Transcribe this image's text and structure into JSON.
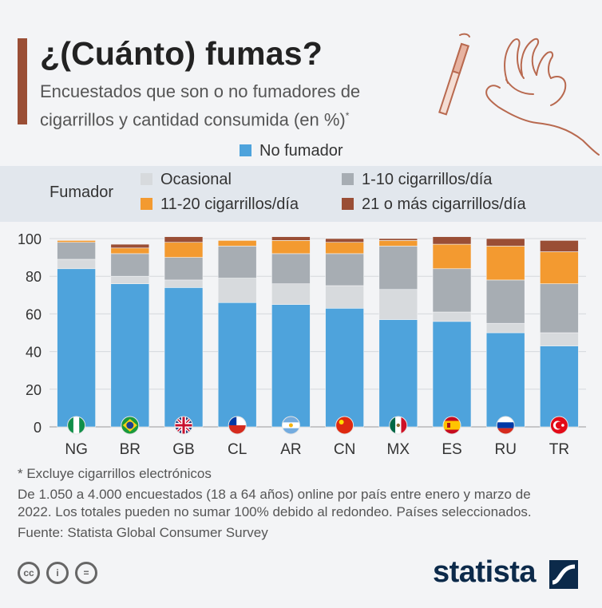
{
  "title": "¿(Cuánto) fumas?",
  "subtitle": "Encuestados que son o no fumadores de cigarrillos y cantidad consumida (en %)",
  "subtitle_mark": "*",
  "legend": {
    "no_smoker": "No fumador",
    "smoker_label": "Fumador",
    "occasional": "Ocasional",
    "light": "1-10 cigarrillos/día",
    "medium": "11-20 cigarrillos/día",
    "heavy": "21 o más cigarrillos/día"
  },
  "colors": {
    "no_smoker": "#4ea3dc",
    "occasional": "#d7dadd",
    "light": "#a7adb3",
    "medium": "#f39a30",
    "heavy": "#9a4e35"
  },
  "chart_data": {
    "type": "bar",
    "stacked": true,
    "categories": [
      "NG",
      "BR",
      "GB",
      "CL",
      "AR",
      "CN",
      "MX",
      "ES",
      "RU",
      "TR"
    ],
    "series": [
      {
        "name": "No fumador",
        "values": [
          84,
          76,
          74,
          66,
          65,
          63,
          57,
          56,
          50,
          43
        ]
      },
      {
        "name": "Ocasional",
        "values": [
          5,
          4,
          4,
          13,
          11,
          12,
          16,
          5,
          5,
          7
        ]
      },
      {
        "name": "1-10 cigarrillos/día",
        "values": [
          9,
          12,
          12,
          17,
          16,
          17,
          23,
          23,
          23,
          26
        ]
      },
      {
        "name": "11-20 cigarrillos/día",
        "values": [
          1,
          3,
          8,
          3,
          7,
          6,
          3,
          13,
          18,
          17
        ]
      },
      {
        "name": "21 o más cigarrillos/día",
        "values": [
          0,
          2,
          3,
          0,
          2,
          2,
          1,
          4,
          4,
          6
        ]
      }
    ],
    "yticks": [
      0,
      20,
      40,
      60,
      80,
      100
    ],
    "ylim": [
      0,
      100
    ],
    "grid": true,
    "flags": [
      "nigeria-flag-icon",
      "brazil-flag-icon",
      "uk-flag-icon",
      "chile-flag-icon",
      "argentina-flag-icon",
      "china-flag-icon",
      "mexico-flag-icon",
      "spain-flag-icon",
      "russia-flag-icon",
      "turkey-flag-icon"
    ]
  },
  "footnotes": {
    "line1": "* Excluye cigarrillos electrónicos",
    "line2": "De 1.050 a 4.000 encuestados (18 a 64 años) online por país entre enero y marzo de",
    "line3": "2022. Los totales pueden no sumar 100% debido al redondeo. Países seleccionados.",
    "source": "Fuente: Statista Global Consumer Survey"
  },
  "brand": "statista",
  "license_icons": [
    "cc-icon",
    "attribution-icon",
    "no-derivatives-icon"
  ]
}
